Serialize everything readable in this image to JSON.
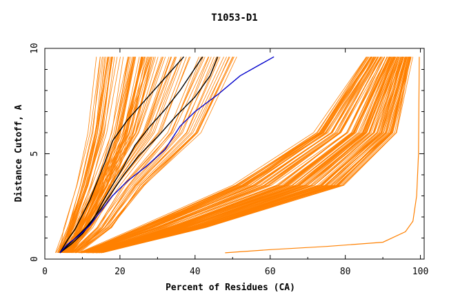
{
  "chart_data": {
    "type": "line",
    "title": "T1053-D1",
    "xlabel": "Percent of Residues (CA)",
    "ylabel": "Distance Cutoff, A",
    "xlim": [
      0,
      101
    ],
    "ylim": [
      0,
      10
    ],
    "x_ticks": [
      0,
      20,
      40,
      60,
      80,
      100
    ],
    "x_tick_labels": [
      "0",
      "20",
      "40",
      "60",
      "80",
      "100"
    ],
    "y_ticks": [
      0,
      5,
      10
    ],
    "y_tick_labels": [
      "0",
      "5",
      "10"
    ],
    "y_minor_step": 1,
    "grid": false,
    "legend": "none",
    "colors": {
      "bulk": "#ff8000",
      "highlight_black": "#000000",
      "highlight_blue": "#0000cc"
    },
    "bulk_bands": [
      {
        "name_hint": "steep",
        "count": 55,
        "base": [
          [
            3,
            0.3
          ],
          [
            5,
            1.5
          ],
          [
            8,
            3.5
          ],
          [
            11,
            6
          ],
          [
            13,
            9.6
          ]
        ],
        "spread": [
          [
            4,
            0.3
          ],
          [
            7,
            1.5
          ],
          [
            10,
            3.5
          ],
          [
            13,
            6
          ],
          [
            16,
            9.6
          ]
        ]
      },
      {
        "name_hint": "mid-steep",
        "count": 45,
        "base": [
          [
            4,
            0.3
          ],
          [
            8,
            1.5
          ],
          [
            13,
            3.5
          ],
          [
            20,
            6
          ],
          [
            26,
            9.6
          ]
        ],
        "spread": [
          [
            5,
            0.3
          ],
          [
            10,
            1.5
          ],
          [
            14,
            3.5
          ],
          [
            22,
            6
          ],
          [
            26,
            9.6
          ]
        ]
      },
      {
        "name_hint": "shallow",
        "count": 120,
        "base": [
          [
            9,
            0.3
          ],
          [
            25,
            1.5
          ],
          [
            50,
            3.5
          ],
          [
            72,
            6
          ],
          [
            86,
            9.6
          ]
        ],
        "spread": [
          [
            6,
            0.3
          ],
          [
            18,
            1.5
          ],
          [
            30,
            3.5
          ],
          [
            22,
            6
          ],
          [
            12,
            9.6
          ]
        ]
      }
    ],
    "outlier": {
      "x": [
        48,
        60,
        75,
        90,
        96,
        98,
        99,
        99.5,
        99.7
      ],
      "y": [
        0.3,
        0.45,
        0.6,
        0.8,
        1.3,
        1.8,
        3,
        5,
        9.6
      ]
    },
    "highlight_series": [
      {
        "color": "#000000",
        "x": [
          4,
          6,
          8,
          10,
          12,
          14,
          16,
          18,
          22,
          26,
          30,
          34,
          37
        ],
        "y": [
          0.3,
          0.9,
          1.4,
          2.1,
          2.8,
          3.7,
          4.6,
          5.6,
          6.6,
          7.4,
          8.2,
          9.0,
          9.6
        ]
      },
      {
        "color": "#000000",
        "x": [
          4,
          7,
          10,
          13,
          15,
          18,
          21,
          24,
          28,
          32,
          36,
          39,
          42
        ],
        "y": [
          0.3,
          0.7,
          1.2,
          1.9,
          2.6,
          3.5,
          4.4,
          5.4,
          6.3,
          7.1,
          8.0,
          8.8,
          9.6
        ]
      },
      {
        "color": "#000000",
        "x": [
          4,
          7,
          11,
          15,
          18,
          21,
          25,
          30,
          35,
          40,
          44,
          46
        ],
        "y": [
          0.3,
          0.8,
          1.5,
          2.4,
          3.2,
          4.0,
          4.9,
          5.8,
          6.8,
          7.7,
          8.7,
          9.6
        ]
      },
      {
        "color": "#0000cc",
        "x": [
          4,
          6,
          9,
          12,
          15,
          18,
          22,
          27,
          32,
          36,
          40,
          46,
          52,
          57,
          61
        ],
        "y": [
          0.3,
          0.7,
          1.1,
          1.6,
          2.3,
          3.0,
          3.7,
          4.4,
          5.2,
          6.3,
          7.0,
          7.8,
          8.7,
          9.2,
          9.6
        ]
      }
    ]
  }
}
